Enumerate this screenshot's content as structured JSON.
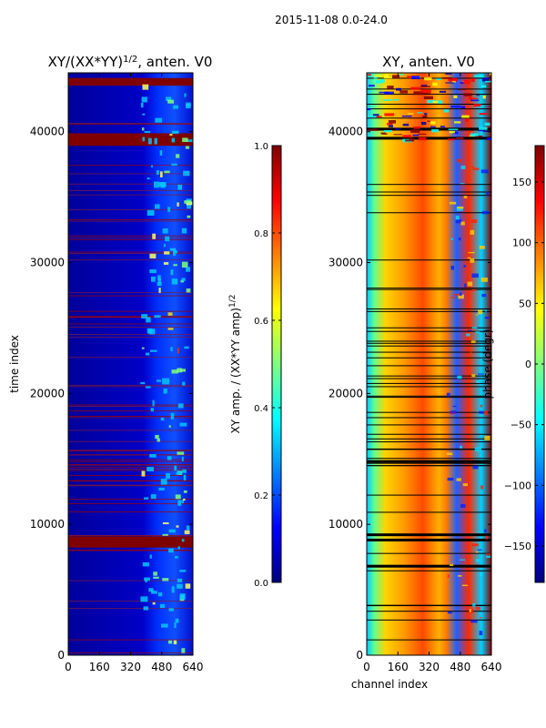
{
  "figure": {
    "suptitle": "2015-11-08 0.0-24.0"
  },
  "chart_data": [
    {
      "type": "heatmap",
      "title_main": "XY/(XX*YY)",
      "title_sup": "1/2",
      "title_rest": ", anten. V0",
      "xlabel": "",
      "ylabel": "time index",
      "xlim": [
        0,
        640
      ],
      "ylim": [
        0,
        44500
      ],
      "xticks": [
        0,
        160,
        320,
        480,
        640
      ],
      "yticks": [
        0,
        10000,
        20000,
        30000,
        40000
      ],
      "colorbar": {
        "label_main": "XY amp. / (XX*YY amp)",
        "label_sup": "1/2",
        "range": [
          0.0,
          1.0
        ],
        "ticks": [
          0.0,
          0.2,
          0.4,
          0.6,
          0.8,
          1.0
        ],
        "tick_labels": [
          "0.0",
          "0.2",
          "0.4",
          "0.6",
          "0.8",
          "1.0"
        ]
      },
      "saturated_rows_at_time_index": [
        8500,
        8800,
        39200,
        39600,
        43800
      ]
    },
    {
      "type": "heatmap",
      "title_main": "XY, anten. V0",
      "title_sup": "",
      "title_rest": "",
      "xlabel": "channel index",
      "ylabel": "",
      "xlim": [
        0,
        640
      ],
      "ylim": [
        0,
        44500
      ],
      "xticks": [
        0,
        160,
        320,
        480,
        640
      ],
      "yticks": [
        0,
        10000,
        20000,
        30000,
        40000
      ],
      "colorbar": {
        "label_main": "phase (degr)",
        "label_sup": "",
        "range": [
          -180,
          180
        ],
        "ticks": [
          -150,
          -100,
          -50,
          0,
          50,
          100,
          150
        ],
        "tick_labels": [
          "−150",
          "−100",
          "−50",
          "0",
          "50",
          "100",
          "150"
        ]
      },
      "data_gap_rows_at_time_index": [
        6800,
        8800,
        9200,
        14800,
        39500,
        40200
      ]
    }
  ],
  "colors": {
    "jet_stops": [
      "#00007f",
      "#0000ff",
      "#007fff",
      "#00ffff",
      "#7fff7f",
      "#ffff00",
      "#ff7f00",
      "#ff0000",
      "#7f0000"
    ],
    "axis": "#000000",
    "background": "#ffffff"
  }
}
